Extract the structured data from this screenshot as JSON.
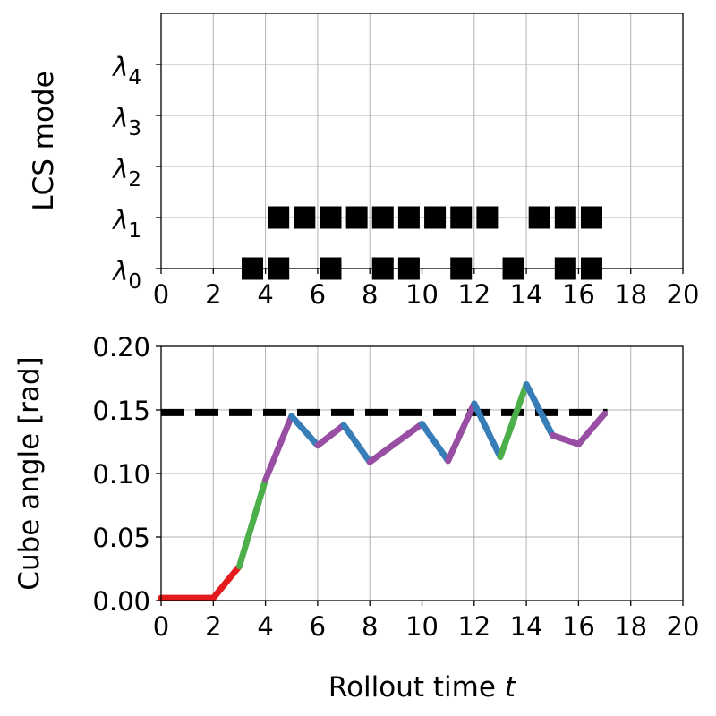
{
  "chart_data": [
    {
      "type": "scatter",
      "ylabel": "LCS mode",
      "xlim": [
        0,
        20
      ],
      "ylim": [
        0,
        5
      ],
      "xticks": [
        0,
        2,
        4,
        6,
        8,
        10,
        12,
        14,
        16,
        18,
        20
      ],
      "yticks": [
        {
          "value": 0,
          "base": "λ",
          "sub": "0"
        },
        {
          "value": 1,
          "base": "λ",
          "sub": "1"
        },
        {
          "value": 2,
          "base": "λ",
          "sub": "2"
        },
        {
          "value": 3,
          "base": "λ",
          "sub": "3"
        },
        {
          "value": 4,
          "base": "λ",
          "sub": "4"
        }
      ],
      "grid": true,
      "marker": "square",
      "marker_color": "#000000",
      "modes": {
        "lambda_0": [
          3.5,
          4.5,
          6.5,
          8.5,
          9.5,
          11.5,
          13.5,
          15.5,
          16.5
        ],
        "lambda_1": [
          4.5,
          5.5,
          6.5,
          7.5,
          8.5,
          9.5,
          10.5,
          11.5,
          12.5,
          14.5,
          15.5,
          16.5
        ]
      }
    },
    {
      "type": "line",
      "xlabel": "Rollout time",
      "xlabel_var": "t",
      "ylabel": "Cube angle [rad]",
      "xlim": [
        0,
        20
      ],
      "ylim": [
        0,
        0.2
      ],
      "xticks": [
        0,
        2,
        4,
        6,
        8,
        10,
        12,
        14,
        16,
        18,
        20
      ],
      "yticks": [
        "0.00",
        "0.05",
        "0.10",
        "0.15",
        "0.20"
      ],
      "grid": true,
      "threshold": {
        "value": 0.148,
        "x": [
          0,
          17
        ],
        "style": "dashed",
        "color": "#000000"
      },
      "segments": [
        {
          "x": [
            0,
            2
          ],
          "y": [
            0.002,
            0.002
          ],
          "color": "#e41a1c"
        },
        {
          "x": [
            2,
            3
          ],
          "y": [
            0.002,
            0.027
          ],
          "color": "#e41a1c"
        },
        {
          "x": [
            3,
            4
          ],
          "y": [
            0.027,
            0.095
          ],
          "color": "#4daf4a"
        },
        {
          "x": [
            4,
            5
          ],
          "y": [
            0.095,
            0.145
          ],
          "color": "#984ea3"
        },
        {
          "x": [
            5,
            6
          ],
          "y": [
            0.145,
            0.122
          ],
          "color": "#377eb8"
        },
        {
          "x": [
            6,
            7
          ],
          "y": [
            0.122,
            0.138
          ],
          "color": "#984ea3"
        },
        {
          "x": [
            7,
            8
          ],
          "y": [
            0.138,
            0.109
          ],
          "color": "#377eb8"
        },
        {
          "x": [
            8,
            10
          ],
          "y": [
            0.109,
            0.139
          ],
          "color": "#984ea3"
        },
        {
          "x": [
            10,
            11
          ],
          "y": [
            0.139,
            0.11
          ],
          "color": "#377eb8"
        },
        {
          "x": [
            11,
            12
          ],
          "y": [
            0.11,
            0.155
          ],
          "color": "#984ea3"
        },
        {
          "x": [
            12,
            13
          ],
          "y": [
            0.155,
            0.113
          ],
          "color": "#377eb8"
        },
        {
          "x": [
            13,
            14
          ],
          "y": [
            0.113,
            0.17
          ],
          "color": "#4daf4a"
        },
        {
          "x": [
            14,
            15
          ],
          "y": [
            0.17,
            0.13
          ],
          "color": "#377eb8"
        },
        {
          "x": [
            15,
            16
          ],
          "y": [
            0.13,
            0.123
          ],
          "color": "#984ea3"
        },
        {
          "x": [
            16,
            17
          ],
          "y": [
            0.123,
            0.147
          ],
          "color": "#984ea3"
        }
      ]
    }
  ]
}
